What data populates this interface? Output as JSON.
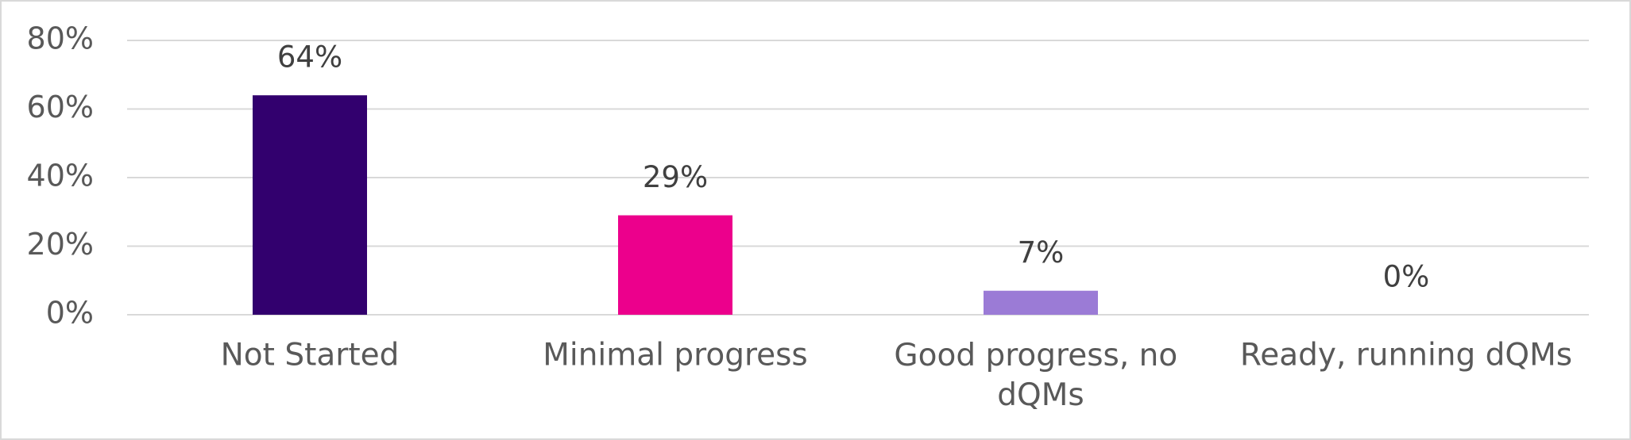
{
  "chart_data": {
    "type": "bar",
    "categories": [
      "Not Started",
      "Minimal progress",
      "Good progress, no dQMs",
      "Ready, running dQMs"
    ],
    "values": [
      64,
      29,
      7,
      0
    ],
    "value_labels": [
      "64%",
      "29%",
      "7%",
      "0%"
    ],
    "colors": [
      "#32006e",
      "#ec008c",
      "#9b7bd6",
      "#9b7bd6"
    ],
    "ylim": [
      0,
      80
    ],
    "yticks": [
      {
        "value": 0,
        "label": "0%"
      },
      {
        "value": 20,
        "label": "20%"
      },
      {
        "value": 40,
        "label": "40%"
      },
      {
        "value": 60,
        "label": "60%"
      },
      {
        "value": 80,
        "label": "80%"
      }
    ],
    "grid": true
  }
}
